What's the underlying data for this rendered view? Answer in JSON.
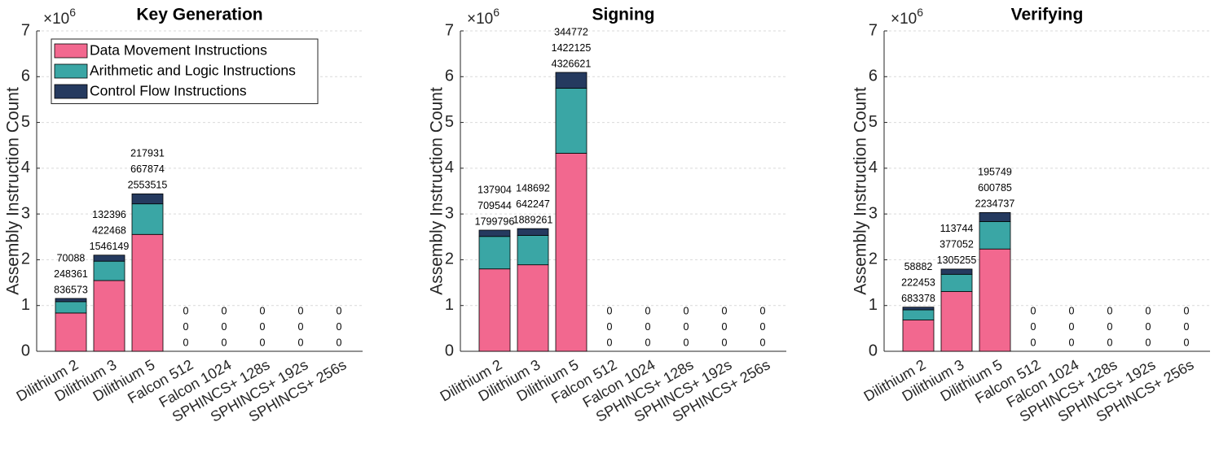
{
  "chart_data": [
    {
      "type": "bar",
      "stacked": true,
      "title": "Key Generation",
      "ylabel": "Assembly Instruction Count",
      "y_multiplier": {
        "base": "×10",
        "exponent": "6"
      },
      "categories": [
        "Dilithium 2",
        "Dilithium 3",
        "Dilithium 5",
        "Falcon 512",
        "Falcon 1024",
        "SPHINCS+ 128s",
        "SPHINCS+ 192s",
        "SPHINCS+ 256s"
      ],
      "series": [
        {
          "name": "Data Movement Instructions",
          "color": "#f2688f",
          "values": [
            836573,
            1546149,
            2553515,
            0,
            0,
            0,
            0,
            0
          ]
        },
        {
          "name": "Arithmetic and Logic Instructions",
          "color": "#3aa6a5",
          "values": [
            248361,
            422468,
            667874,
            0,
            0,
            0,
            0,
            0
          ]
        },
        {
          "name": "Control Flow Instructions",
          "color": "#253a5f",
          "values": [
            70088,
            132396,
            217931,
            0,
            0,
            0,
            0,
            0
          ]
        }
      ],
      "ylim": [
        0,
        7000000
      ],
      "yticks": [
        0,
        {
          "value": 1000000,
          "label": "1"
        },
        {
          "value": 2000000,
          "label": "2"
        },
        {
          "value": 3000000,
          "label": "3"
        },
        {
          "value": 4000000,
          "label": "4"
        },
        {
          "value": 5000000,
          "label": "5"
        },
        {
          "value": 6000000,
          "label": "6"
        },
        {
          "value": 7000000,
          "label": "7"
        }
      ],
      "grid": true,
      "legend": "northwest"
    },
    {
      "type": "bar",
      "stacked": true,
      "title": "Signing",
      "ylabel": "Assembly Instruction Count",
      "y_multiplier": {
        "base": "×10",
        "exponent": "6"
      },
      "categories": [
        "Dilithium 2",
        "Dilithium 3",
        "Dilithium 5",
        "Falcon 512",
        "Falcon 1024",
        "SPHINCS+ 128s",
        "SPHINCS+ 192s",
        "SPHINCS+ 256s"
      ],
      "series": [
        {
          "color": "#f2688f",
          "values": [
            1799796,
            1889261,
            4326621,
            0,
            0,
            0,
            0,
            0
          ]
        },
        {
          "color": "#3aa6a5",
          "values": [
            709544,
            642247,
            1422125,
            0,
            0,
            0,
            0,
            0
          ]
        },
        {
          "color": "#253a5f",
          "values": [
            137904,
            148692,
            344772,
            0,
            0,
            0,
            0,
            0
          ]
        }
      ],
      "ylim": [
        0,
        7000000
      ],
      "yticks": [
        0,
        {
          "value": 1000000,
          "label": "1"
        },
        {
          "value": 2000000,
          "label": "2"
        },
        {
          "value": 3000000,
          "label": "3"
        },
        {
          "value": 4000000,
          "label": "4"
        },
        {
          "value": 5000000,
          "label": "5"
        },
        {
          "value": 6000000,
          "label": "6"
        },
        {
          "value": 7000000,
          "label": "7"
        }
      ],
      "grid": true
    },
    {
      "type": "bar",
      "stacked": true,
      "title": "Verifying",
      "ylabel": "Assembly Instruction Count",
      "y_multiplier": {
        "base": "×10",
        "exponent": "6"
      },
      "categories": [
        "Dilithium 2",
        "Dilithium 3",
        "Dilithium 5",
        "Falcon 512",
        "Falcon 1024",
        "SPHINCS+ 128s",
        "SPHINCS+ 192s",
        "SPHINCS+ 256s"
      ],
      "series": [
        {
          "color": "#f2688f",
          "values": [
            683378,
            1305255,
            2234737,
            0,
            0,
            0,
            0,
            0
          ]
        },
        {
          "color": "#3aa6a5",
          "values": [
            222453,
            377052,
            600785,
            0,
            0,
            0,
            0,
            0
          ]
        },
        {
          "color": "#253a5f",
          "values": [
            58882,
            113744,
            195749,
            0,
            0,
            0,
            0,
            0
          ]
        }
      ],
      "ylim": [
        0,
        7000000
      ],
      "yticks": [
        0,
        {
          "value": 1000000,
          "label": "1"
        },
        {
          "value": 2000000,
          "label": "2"
        },
        {
          "value": 3000000,
          "label": "3"
        },
        {
          "value": 4000000,
          "label": "4"
        },
        {
          "value": 5000000,
          "label": "5"
        },
        {
          "value": 6000000,
          "label": "6"
        },
        {
          "value": 7000000,
          "label": "7"
        }
      ],
      "grid": true
    }
  ]
}
